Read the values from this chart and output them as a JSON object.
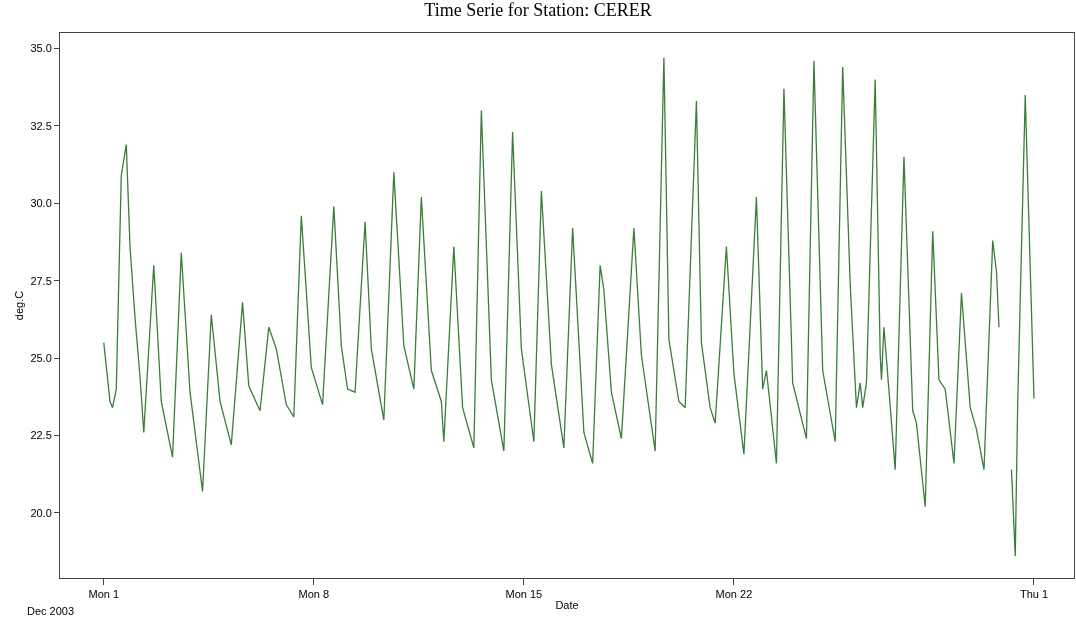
{
  "chart_data": {
    "type": "line",
    "title": "Time Serie for Station: CERER",
    "xlabel": "Date",
    "ylabel": "deg.C",
    "annotations": [
      "Dec 2003"
    ],
    "x": [
      "2003-12-01T00:00",
      "2003-12-01T05:00",
      "2003-12-01T07:00",
      "2003-12-01T10:00",
      "2003-12-01T14:00",
      "2003-12-01T18:00",
      "2003-12-01T21:00",
      "2003-12-02T01:00",
      "2003-12-02T05:00",
      "2003-12-02T08:00",
      "2003-12-02T16:00",
      "2003-12-02T22:00",
      "2003-12-03T07:00",
      "2003-12-03T14:00",
      "2003-12-03T21:00",
      "2003-12-04T07:00",
      "2003-12-04T14:00",
      "2003-12-04T21:00",
      "2003-12-05T06:00",
      "2003-12-05T15:00",
      "2003-12-05T20:00",
      "2003-12-06T05:00",
      "2003-12-06T12:00",
      "2003-12-06T18:00",
      "2003-12-07T02:00",
      "2003-12-07T08:00",
      "2003-12-07T14:00",
      "2003-12-07T22:00",
      "2003-12-08T07:00",
      "2003-12-08T16:00",
      "2003-12-08T22:00",
      "2003-12-09T03:00",
      "2003-12-09T09:00",
      "2003-12-09T17:00",
      "2003-12-09T22:00",
      "2003-12-10T08:00",
      "2003-12-10T16:00",
      "2003-12-11T00:00",
      "2003-12-11T08:00",
      "2003-12-11T14:00",
      "2003-12-11T22:00",
      "2003-12-12T06:00",
      "2003-12-12T08:00",
      "2003-12-12T16:00",
      "2003-12-12T23:00",
      "2003-12-13T08:00",
      "2003-12-13T14:00",
      "2003-12-13T22:00",
      "2003-12-14T08:00",
      "2003-12-14T15:00",
      "2003-12-14T22:00",
      "2003-12-15T08:00",
      "2003-12-15T14:00",
      "2003-12-15T22:00",
      "2003-12-16T08:00",
      "2003-12-16T15:00",
      "2003-12-17T00:00",
      "2003-12-17T07:00",
      "2003-12-17T13:00",
      "2003-12-17T16:00",
      "2003-12-17T22:00",
      "2003-12-18T06:00",
      "2003-12-18T16:00",
      "2003-12-18T22:00",
      "2003-12-19T09:00",
      "2003-12-19T16:00",
      "2003-12-19T20:00",
      "2003-12-20T04:00",
      "2003-12-20T09:00",
      "2003-12-20T18:00",
      "2003-12-20T22:00",
      "2003-12-21T05:00",
      "2003-12-21T09:00",
      "2003-12-21T18:00",
      "2003-12-22T00:00",
      "2003-12-22T08:00",
      "2003-12-22T18:00",
      "2003-12-22T23:00",
      "2003-12-23T02:00",
      "2003-12-23T10:00",
      "2003-12-23T16:00",
      "2003-12-23T23:00",
      "2003-12-24T10:00",
      "2003-12-24T16:00",
      "2003-12-24T23:00",
      "2003-12-25T09:00",
      "2003-12-25T15:00",
      "2003-12-25T21:00",
      "2003-12-26T02:00",
      "2003-12-26T05:00",
      "2003-12-26T07:00",
      "2003-12-26T10:00",
      "2003-12-26T17:00",
      "2003-12-26T21:00",
      "2003-12-26T22:00",
      "2003-12-27T00:00",
      "2003-12-27T09:00",
      "2003-12-27T16:00",
      "2003-12-27T23:00",
      "2003-12-28T02:00",
      "2003-12-28T09:00",
      "2003-12-28T15:00",
      "2003-12-28T20:00",
      "2003-12-29T01:00",
      "2003-12-29T08:00",
      "2003-12-29T14:00",
      "2003-12-29T21:00",
      "2003-12-30T02:00",
      "2003-12-30T08:00",
      "2003-12-30T15:00",
      "2003-12-30T18:00",
      "2003-12-30T20:00",
      "2003-12-31T00:00",
      "2003-12-31T06:00",
      "2003-12-31T09:00",
      "2003-12-31T11:00",
      "2003-12-31T17:00",
      "2004-01-01T00:00"
    ],
    "series": [
      {
        "color": "#3b7d3a",
        "values": [
          25.5,
          23.6,
          23.4,
          24.0,
          30.9,
          31.9,
          28.6,
          26.3,
          24.4,
          22.6,
          28.0,
          23.6,
          21.8,
          28.4,
          23.9,
          20.7,
          26.4,
          23.6,
          22.2,
          26.8,
          24.1,
          23.3,
          26.0,
          25.3,
          23.5,
          23.1,
          29.6,
          24.7,
          23.5,
          29.9,
          25.4,
          24.0,
          23.9,
          29.4,
          25.3,
          23.0,
          31.0,
          25.4,
          24.0,
          30.2,
          24.6,
          23.6,
          22.3,
          28.6,
          23.4,
          22.1,
          33.0,
          24.3,
          22.0,
          32.3,
          25.3,
          22.3,
          30.4,
          24.8,
          22.1,
          29.2,
          22.6,
          21.6,
          28.0,
          27.2,
          23.9,
          22.4,
          29.2,
          25.1,
          22.0,
          34.7,
          25.6,
          23.6,
          23.4,
          33.3,
          25.5,
          23.4,
          22.9,
          28.6,
          24.5,
          21.9,
          30.2,
          24.0,
          24.6,
          21.6,
          33.7,
          24.2,
          22.4,
          34.6,
          24.6,
          22.3,
          34.4,
          27.4,
          23.4,
          24.2,
          23.4,
          24.2,
          34.0,
          25.1,
          24.3,
          26.0,
          21.4,
          31.5,
          23.3,
          22.9,
          20.2,
          29.1,
          24.3,
          24.0,
          21.6,
          27.1,
          23.4,
          22.7,
          21.4,
          28.8,
          27.8,
          26.0,
          null,
          21.4,
          18.6,
          23.6,
          33.5,
          23.7
        ]
      }
    ],
    "xlim": [
      "2003-11-29T13:00",
      "2004-01-02T08:00"
    ],
    "xticks": [
      {
        "value": "2003-12-01",
        "label": "Mon 1"
      },
      {
        "value": "2003-12-08",
        "label": "Mon 8"
      },
      {
        "value": "2003-12-15",
        "label": "Mon 15"
      },
      {
        "value": "2003-12-22",
        "label": "Mon 22"
      },
      {
        "value": "2004-01-01",
        "label": "Thu 1"
      }
    ],
    "ylim": [
      17.9,
      35.5
    ],
    "yticks": [
      {
        "value": 20,
        "label": "20.0"
      },
      {
        "value": 22.5,
        "label": "22.5"
      },
      {
        "value": 25,
        "label": "25.0"
      },
      {
        "value": 27.5,
        "label": "27.5"
      },
      {
        "value": 30,
        "label": "30.0"
      },
      {
        "value": 32.5,
        "label": "32.5"
      },
      {
        "value": 35,
        "label": "35.0"
      }
    ],
    "line_style": "solid",
    "marker": "none"
  }
}
